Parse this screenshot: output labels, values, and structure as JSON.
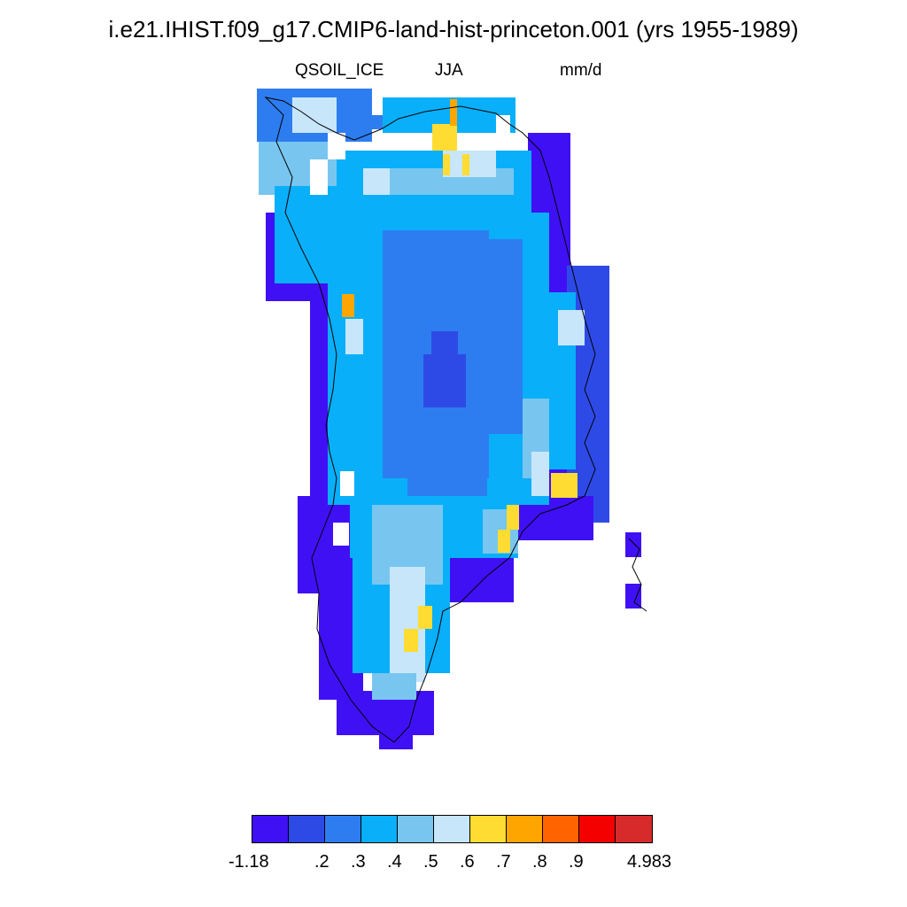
{
  "title": "i.e21.IHIST.f09_g17.CMIP6-land-hist-princeton.001 (yrs 1955-1989)",
  "variable": "QSOIL_ICE",
  "season": "JJA",
  "units": "mm/d",
  "legend": {
    "colors": [
      "#4010f5",
      "#2e4ae6",
      "#2e7df0",
      "#0aaffa",
      "#78c6f0",
      "#c8e6fa",
      "#ffdc32",
      "#ffa500",
      "#ff6400",
      "#f50000",
      "#d72a2a"
    ],
    "labels": [
      "-1.18",
      ".2",
      ".3",
      ".4",
      ".5",
      ".6",
      ".7",
      ".8",
      ".9",
      "4.983"
    ]
  },
  "map": {
    "region": "Greenland",
    "dominant_interior_value_range": [
      ".3",
      ".4"
    ]
  }
}
